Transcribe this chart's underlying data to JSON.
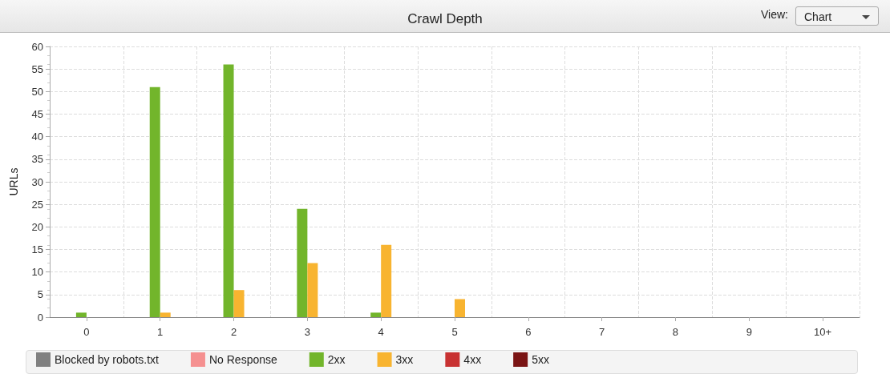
{
  "chart_data": {
    "type": "bar",
    "title": "Crawl Depth",
    "ylabel": "URLs",
    "annotations": [
      "View:",
      "Chart"
    ],
    "categories": [
      "0",
      "1",
      "2",
      "3",
      "4",
      "5",
      "6",
      "7",
      "8",
      "9",
      "10+"
    ],
    "series": [
      {
        "name": "Blocked by robots.txt",
        "color": "#808080",
        "values": [
          0,
          0,
          0,
          0,
          0,
          0,
          0,
          0,
          0,
          0,
          0
        ]
      },
      {
        "name": "No Response",
        "color": "#f59090",
        "values": [
          0,
          0,
          0,
          0,
          0,
          0,
          0,
          0,
          0,
          0,
          0
        ]
      },
      {
        "name": "2xx",
        "color": "#72b52b",
        "values": [
          1,
          51,
          56,
          24,
          1,
          0,
          0,
          0,
          0,
          0,
          0
        ]
      },
      {
        "name": "3xx",
        "color": "#f8b430",
        "values": [
          0,
          1,
          6,
          12,
          16,
          4,
          0,
          0,
          0,
          0,
          0
        ]
      },
      {
        "name": "4xx",
        "color": "#c83232",
        "values": [
          0,
          0,
          0,
          0,
          0,
          0,
          0,
          0,
          0,
          0,
          0
        ]
      },
      {
        "name": "5xx",
        "color": "#7a1414",
        "values": [
          0,
          0,
          0,
          0,
          0,
          0,
          0,
          0,
          0,
          0,
          0
        ]
      }
    ],
    "ylim": [
      0,
      60
    ],
    "yticks": [
      0,
      5,
      10,
      15,
      20,
      25,
      30,
      35,
      40,
      45,
      50,
      55,
      60
    ],
    "grid": true,
    "legend": "bottom"
  }
}
